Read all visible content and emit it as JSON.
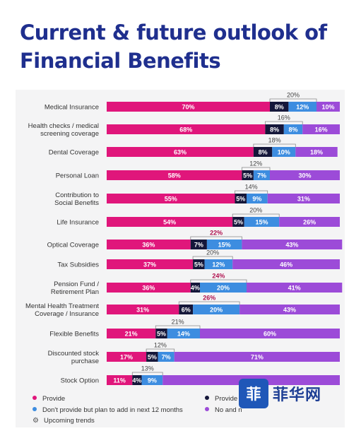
{
  "title": "Current & future outlook of Financial Benefits",
  "watermark": {
    "text": "菲华网"
  },
  "colors": {
    "provide": "#e0167b",
    "provide_no_plan": "#15173a",
    "plan_to_add": "#3d8de0",
    "no_plan": "#9c4bd8"
  },
  "legend": [
    {
      "key": "provide",
      "label": "Provide",
      "color": "#e0167b"
    },
    {
      "key": "provide_no_plan",
      "label": "Provide",
      "color": "#15173a"
    },
    {
      "key": "plan_to_add",
      "label": "Don't provide but plan to add in next 12 months",
      "color": "#3d8de0"
    },
    {
      "key": "no_plan",
      "label": "No and n",
      "color": "#9c4bd8"
    },
    {
      "key": "trend",
      "label": "Upcoming trends",
      "icon": "trend-icon"
    }
  ],
  "chart_data": {
    "type": "bar",
    "orientation": "horizontal",
    "stacked": true,
    "xlim": [
      0,
      100
    ],
    "categories": [
      "Medical Insurance",
      "Health checks / medical screening coverage",
      "Dental Coverage",
      "Personal Loan",
      "Contribution to Social Benefits",
      "Life Insurance",
      "Optical Coverage",
      "Tax Subsidies",
      "Pension Fund / Retirement Plan",
      "Mental Health Treatment Coverage / Insurance",
      "Flexible Benefits",
      "Discounted stock purchase",
      "Stock Option"
    ],
    "category_lines": [
      [
        "Medical Insurance"
      ],
      [
        "Health checks / medical",
        "screening coverage"
      ],
      [
        "Dental Coverage"
      ],
      [
        "Personal Loan"
      ],
      [
        "Contribution to",
        "Social Benefits"
      ],
      [
        "Life Insurance"
      ],
      [
        "Optical Coverage"
      ],
      [
        "Tax Subsidies"
      ],
      [
        "Pension Fund /",
        "Retirement Plan"
      ],
      [
        "Mental Health Treatment",
        "Coverage / Insurance"
      ],
      [
        "Flexible Benefits"
      ],
      [
        "Discounted stock",
        "purchase"
      ],
      [
        "Stock Option"
      ]
    ],
    "series": [
      {
        "key": "provide",
        "values": [
          70,
          68,
          63,
          58,
          55,
          54,
          36,
          37,
          36,
          31,
          21,
          17,
          11
        ]
      },
      {
        "key": "provide_no_plan",
        "values": [
          8,
          8,
          8,
          5,
          5,
          5,
          7,
          5,
          4,
          6,
          5,
          5,
          4
        ]
      },
      {
        "key": "plan_to_add",
        "values": [
          12,
          8,
          10,
          7,
          9,
          15,
          15,
          12,
          20,
          20,
          14,
          7,
          9
        ]
      },
      {
        "key": "no_plan",
        "values": [
          10,
          16,
          18,
          30,
          31,
          26,
          43,
          46,
          41,
          43,
          60,
          71,
          76
        ]
      }
    ],
    "value_labels": [
      [
        "70%",
        "8%",
        "12%",
        "10%"
      ],
      [
        "68%",
        "8%",
        "8%",
        "16%"
      ],
      [
        "63%",
        "8%",
        "10%",
        "18%"
      ],
      [
        "58%",
        "5%",
        "7%",
        "30%"
      ],
      [
        "55%",
        "5%",
        "9%",
        "31%"
      ],
      [
        "54%",
        "5%",
        "15%",
        "26%"
      ],
      [
        "36%",
        "7%",
        "15%",
        "43%"
      ],
      [
        "37%",
        "5%",
        "12%",
        "46%"
      ],
      [
        "36%",
        "4%",
        "20%",
        "41%"
      ],
      [
        "31%",
        "6%",
        "20%",
        "43%"
      ],
      [
        "21%",
        "5%",
        "14%",
        "60%"
      ],
      [
        "17%",
        "5%",
        "7%",
        "71%"
      ],
      [
        "11%",
        "4%",
        "9%",
        ""
      ]
    ],
    "upcoming_trend": [
      {
        "value": "20%",
        "highlight": false
      },
      {
        "value": "16%",
        "highlight": false
      },
      {
        "value": "18%",
        "highlight": false
      },
      {
        "value": "12%",
        "highlight": false
      },
      {
        "value": "14%",
        "highlight": false
      },
      {
        "value": "20%",
        "highlight": false
      },
      {
        "value": "22%",
        "highlight": true
      },
      {
        "value": "20%",
        "highlight": false
      },
      {
        "value": "24%",
        "highlight": true
      },
      {
        "value": "26%",
        "highlight": true
      },
      {
        "value": "21%",
        "highlight": false
      },
      {
        "value": "12%",
        "highlight": false
      },
      {
        "value": "13%",
        "highlight": false
      }
    ]
  }
}
